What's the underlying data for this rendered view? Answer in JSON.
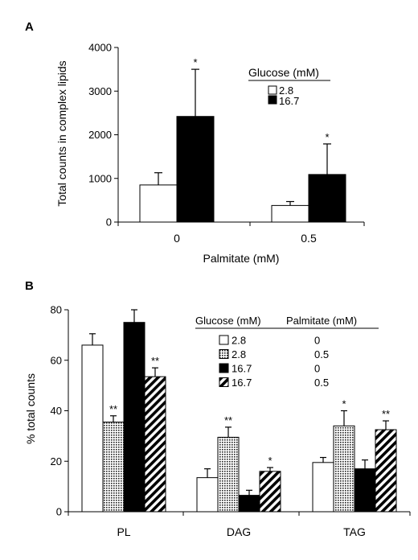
{
  "chart_data": [
    {
      "type": "bar",
      "panel_label": "A",
      "title": "",
      "xlabel": "Palmitate (mM)",
      "ylabel": "Total counts in complex lipids",
      "ylim": [
        0,
        4000
      ],
      "yticks": [
        "0",
        "1000",
        "2000",
        "3000",
        "4000"
      ],
      "categories": [
        "0",
        "0.5"
      ],
      "legend": {
        "title": "Glucose (mM)",
        "placement": "top-right"
      },
      "series": [
        {
          "name": "2.8",
          "pattern": "white",
          "values": [
            850,
            380
          ],
          "errors": [
            280,
            90
          ],
          "significance": [
            "",
            ""
          ]
        },
        {
          "name": "16.7",
          "pattern": "black",
          "values": [
            2420,
            1090
          ],
          "errors": [
            1080,
            700
          ],
          "significance": [
            "*",
            "*"
          ]
        }
      ]
    },
    {
      "type": "bar",
      "panel_label": "B",
      "title": "",
      "xlabel": "",
      "ylabel": "% total counts",
      "ylim": [
        0,
        80
      ],
      "yticks": [
        "0",
        "20",
        "40",
        "60",
        "80"
      ],
      "categories": [
        "PL",
        "DAG",
        "TAG"
      ],
      "legend": {
        "title_glucose": "Glucose (mM)",
        "title_palmitate": "Palmitate (mM)",
        "placement": "top-right"
      },
      "series": [
        {
          "name": "2.8",
          "palmitate": "0",
          "pattern": "white",
          "values": [
            66,
            13.5,
            19.5
          ],
          "errors": [
            4.5,
            3.5,
            2
          ],
          "significance": [
            "",
            "",
            ""
          ]
        },
        {
          "name": "2.8",
          "palmitate": "0.5",
          "pattern": "dotted",
          "values": [
            35.5,
            29.5,
            34
          ],
          "errors": [
            2.5,
            4,
            6
          ],
          "significance": [
            "**",
            "**",
            "*"
          ]
        },
        {
          "name": "16.7",
          "palmitate": "0",
          "pattern": "black",
          "values": [
            75,
            6.5,
            17
          ],
          "errors": [
            5,
            2,
            3.5
          ],
          "significance": [
            "",
            "",
            ""
          ]
        },
        {
          "name": "16.7",
          "palmitate": "0.5",
          "pattern": "hatched",
          "values": [
            53.5,
            16,
            32.5
          ],
          "errors": [
            3.5,
            1.5,
            3.5
          ],
          "significance": [
            "**",
            "*",
            "**"
          ]
        }
      ]
    }
  ]
}
